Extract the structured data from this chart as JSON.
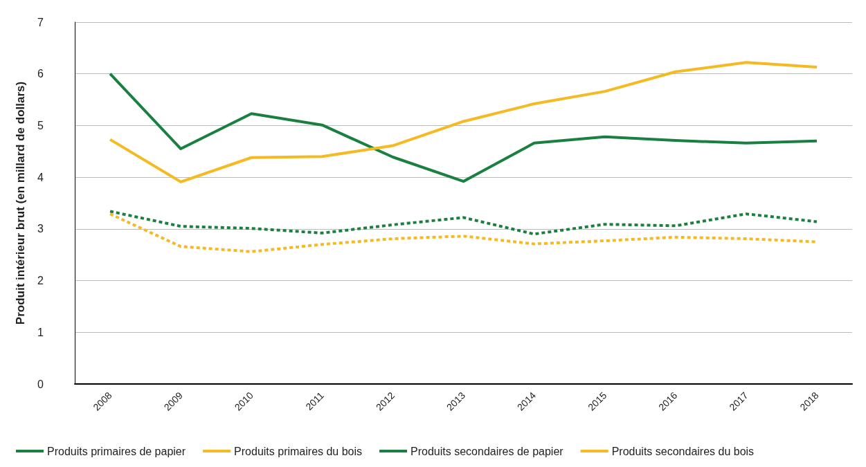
{
  "chart_data": {
    "type": "line",
    "ylabel": "Produit intérieur brut (en millard de dollars)",
    "categories": [
      "2008",
      "2009",
      "2010",
      "2011",
      "2012",
      "2013",
      "2014",
      "2015",
      "2016",
      "2017",
      "2018"
    ],
    "series": [
      {
        "name": "Produits primaires de papier",
        "color": "#1a8040",
        "line_style": "solid",
        "values": [
          6.0,
          4.55,
          5.23,
          5.01,
          4.39,
          3.92,
          4.66,
          4.78,
          4.71,
          4.66,
          4.7
        ]
      },
      {
        "name": "Produits primaires du bois",
        "color": "#f5b921",
        "line_style": "solid",
        "values": [
          4.73,
          3.91,
          4.38,
          4.4,
          4.61,
          5.08,
          5.42,
          5.66,
          6.04,
          6.22,
          6.13
        ]
      },
      {
        "name": "Produits secondaires de papier",
        "color": "#1a8040",
        "line_style": "dashed",
        "values": [
          3.34,
          3.05,
          3.01,
          2.92,
          3.08,
          3.22,
          2.9,
          3.09,
          3.06,
          3.29,
          3.14
        ]
      },
      {
        "name": "Produits secondaires du bois",
        "color": "#f5b921",
        "line_style": "dashed",
        "values": [
          3.29,
          2.66,
          2.56,
          2.7,
          2.81,
          2.86,
          2.71,
          2.77,
          2.84,
          2.81,
          2.75
        ]
      }
    ],
    "ylim": [
      0,
      7
    ],
    "yticks": [
      0,
      1,
      2,
      3,
      4,
      5,
      6,
      7
    ],
    "grid": "y",
    "legend": "bottom",
    "marker": "none"
  }
}
